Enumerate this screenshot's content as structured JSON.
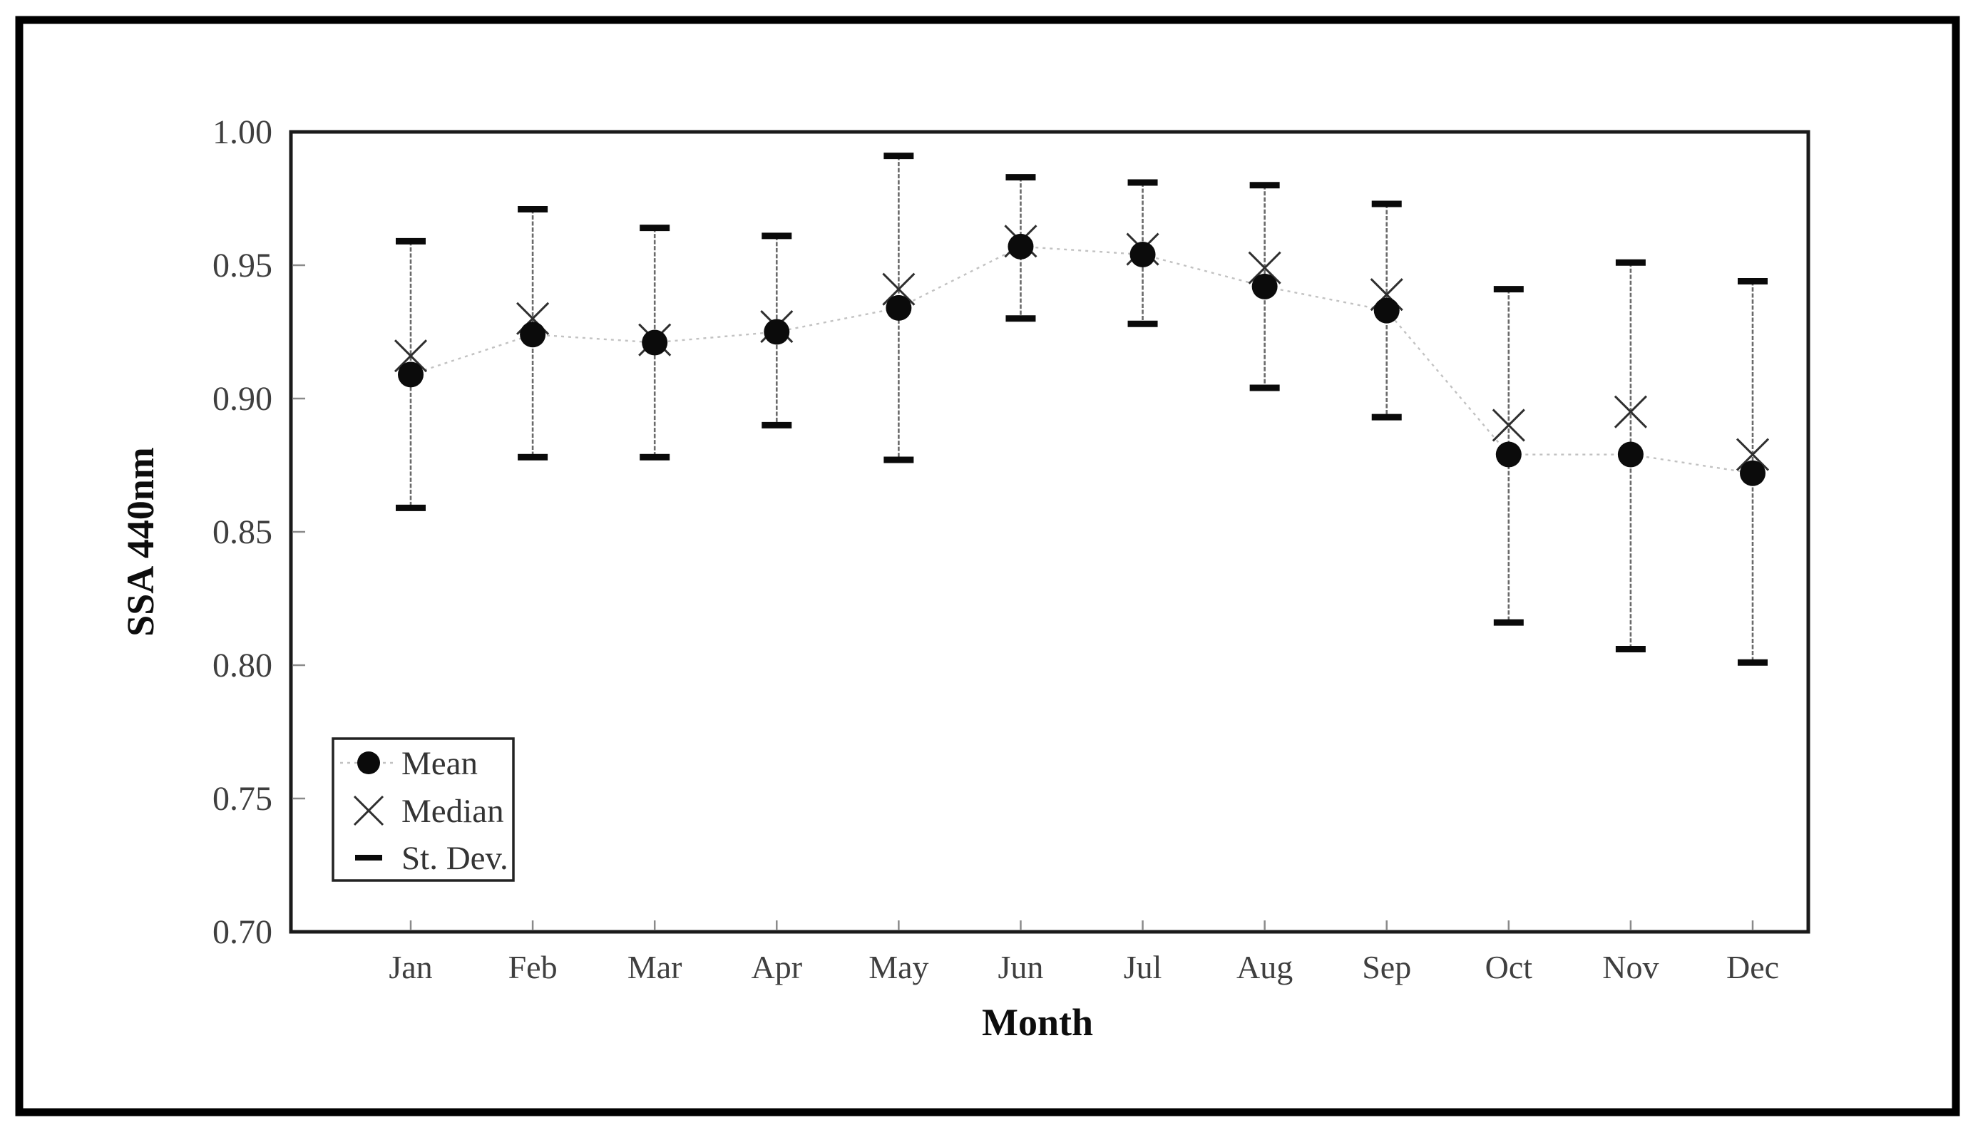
{
  "figure": {
    "border_color": "#000000",
    "background": "#ffffff",
    "y_axis_title": "SSA 440nm",
    "x_axis_title": "Month",
    "legend": [
      {
        "marker": "mean-dot-with-dotted-line",
        "label": "Mean"
      },
      {
        "marker": "median-x-cross",
        "label": "Median"
      },
      {
        "marker": "stdev-dash",
        "label": "St. Dev."
      }
    ],
    "colors": {
      "marker_fill": "#0b0b0b",
      "error_bar_line": "#6a6a6a",
      "error_bar_cap": "#0a0a0a",
      "median_x": "#2f2f2f",
      "mean_connector": "#c2c2c2",
      "tick_text": "#3f3f3f",
      "frame": "#1a1a1a"
    }
  },
  "chart_data": {
    "type": "line",
    "title": "",
    "xlabel": "Month",
    "ylabel": "SSA 440nm",
    "categories": [
      "Jan",
      "Feb",
      "Mar",
      "Apr",
      "May",
      "Jun",
      "Jul",
      "Aug",
      "Sep",
      "Oct",
      "Nov",
      "Dec"
    ],
    "series": [
      {
        "name": "Mean",
        "marker": "filled-circle",
        "linestyle": "dotted",
        "values": [
          0.909,
          0.924,
          0.921,
          0.925,
          0.934,
          0.957,
          0.954,
          0.942,
          0.933,
          0.879,
          0.879,
          0.872
        ]
      },
      {
        "name": "Median",
        "marker": "x-cross",
        "linestyle": "none",
        "values": [
          0.916,
          0.93,
          0.922,
          0.927,
          0.941,
          0.959,
          0.956,
          0.949,
          0.939,
          0.89,
          0.895,
          0.879
        ]
      },
      {
        "name": "St. Dev. upper bound (mean + sd)",
        "marker": "horizontal-cap",
        "linestyle": "error-bar",
        "values": [
          0.959,
          0.971,
          0.964,
          0.961,
          0.991,
          0.983,
          0.981,
          0.98,
          0.973,
          0.941,
          0.951,
          0.944
        ]
      },
      {
        "name": "St. Dev. lower bound (mean - sd)",
        "marker": "horizontal-cap",
        "linestyle": "error-bar",
        "values": [
          0.859,
          0.878,
          0.878,
          0.89,
          0.877,
          0.93,
          0.928,
          0.904,
          0.893,
          0.816,
          0.806,
          0.801
        ]
      }
    ],
    "ylim": [
      0.7,
      1.0
    ],
    "ytick_step": 0.05,
    "ytick_labels": [
      "1.00",
      "0.95",
      "0.90",
      "0.85",
      "0.80",
      "0.75",
      "0.70"
    ],
    "grid": false,
    "legend_position": "lower-left"
  }
}
